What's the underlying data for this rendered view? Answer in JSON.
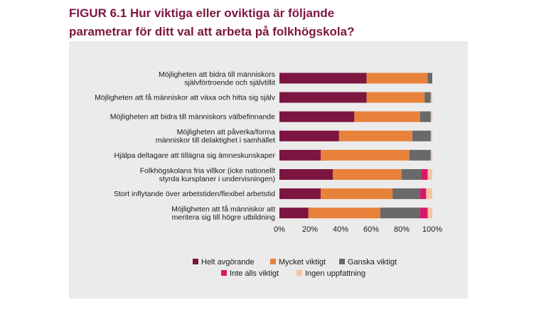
{
  "header": {
    "title_line1": "FIGUR 6.1 Hur viktiga eller oviktiga är följande",
    "title_line2": "parametrar för ditt val att arbeta på folkhögskola?"
  },
  "chart_data": {
    "type": "bar",
    "orientation": "horizontal",
    "stacked": true,
    "categories": [
      [
        "Möjligheten att bidra till människors",
        "självförtroende och självtillit"
      ],
      [
        "Möjligheten att få människor att växa och hitta sig själv"
      ],
      [
        "Möjligheten att bidra till människors välbefinnande"
      ],
      [
        "Möjligheten att påverka/forma",
        "människor till delaktighet i samhället"
      ],
      [
        "Hjälpa deltagare att tillägna sig ämneskunskaper"
      ],
      [
        "Folkhögskolans fria villkor (icke nationellt",
        "styrda kursplaner i undervisningen)"
      ],
      [
        "Stort inflytande över arbetstiden/flexibel arbetstid"
      ],
      [
        "Möjligheten att få människor att",
        "meritera sig till högre utbildning"
      ]
    ],
    "series": [
      {
        "name": "Helt avgörande",
        "color": "#7d1541",
        "values": [
          57,
          57,
          49,
          39,
          27,
          35,
          27,
          19
        ]
      },
      {
        "name": "Mycket viktigt",
        "color": "#e8823a",
        "values": [
          40,
          38,
          43,
          48,
          58,
          45,
          47,
          47
        ]
      },
      {
        "name": "Ganska viktigt",
        "color": "#696969",
        "values": [
          3,
          4,
          7,
          12,
          14,
          13,
          18,
          26
        ]
      },
      {
        "name": "Inte alls viktigt",
        "color": "#d7186a",
        "values": [
          0,
          0,
          0,
          0,
          0,
          4,
          4,
          5
        ]
      },
      {
        "name": "Ingen uppfattning",
        "color": "#f7c3a0",
        "values": [
          0,
          1,
          1,
          1,
          1,
          3,
          4,
          3
        ]
      }
    ],
    "xticks": [
      "0%",
      "20%",
      "40%",
      "60%",
      "80%",
      "100%"
    ],
    "xlim": [
      0,
      100
    ],
    "legend_position": "bottom"
  }
}
